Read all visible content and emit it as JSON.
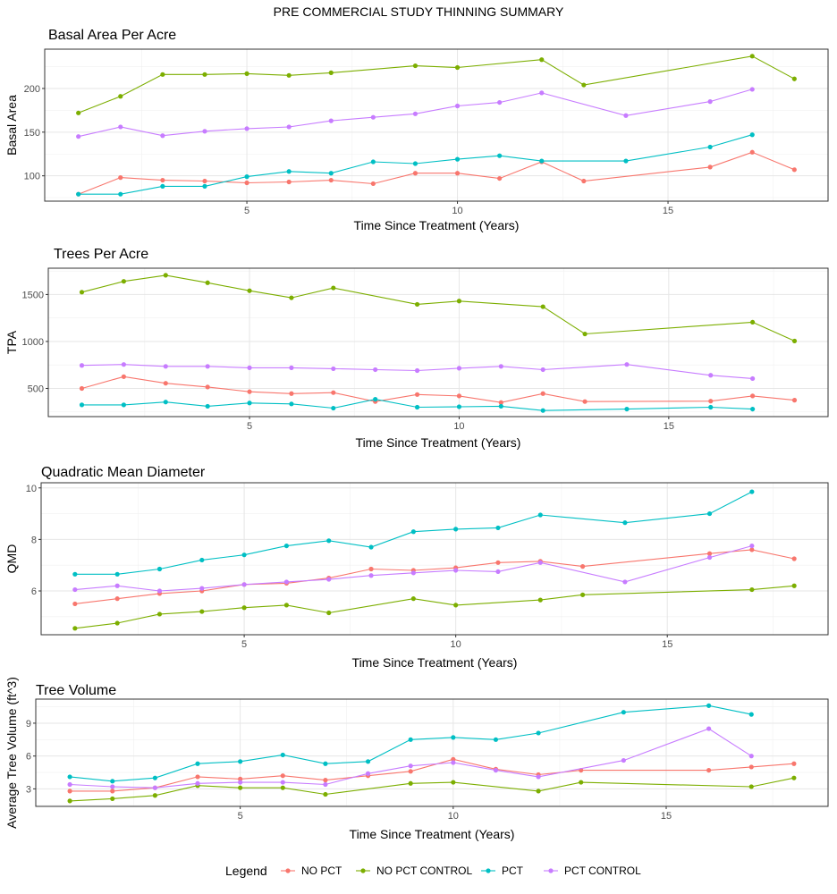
{
  "figure_title": "PRE COMMERCIAL STUDY THINNING SUMMARY",
  "legend": {
    "title": "Legend",
    "position": "bottom",
    "entries": [
      {
        "name": "NO PCT",
        "color": "#F8766D"
      },
      {
        "name": "NO PCT CONTROL",
        "color": "#7CAE00"
      },
      {
        "name": "PCT",
        "color": "#00BFC4"
      },
      {
        "name": "PCT CONTROL",
        "color": "#C77CFF"
      }
    ]
  },
  "chart_data": [
    {
      "type": "line",
      "title": "Basal Area Per Acre",
      "xlabel": "Time Since Treatment (Years)",
      "ylabel": "Basal Area",
      "xlim": [
        0.2,
        18.8
      ],
      "ylim": [
        71,
        245
      ],
      "xticks": [
        5,
        10,
        15
      ],
      "yticks": [
        100,
        150,
        200
      ],
      "series": [
        {
          "name": "NO PCT",
          "x": [
            1,
            2,
            3,
            4,
            5,
            6,
            7,
            8,
            9,
            10,
            11,
            12,
            13,
            16,
            17,
            18
          ],
          "values": [
            79,
            98,
            95,
            94,
            92,
            93,
            95,
            91,
            103,
            103,
            97,
            116,
            94,
            110,
            127,
            107
          ]
        },
        {
          "name": "NO PCT CONTROL",
          "x": [
            1,
            2,
            3,
            4,
            5,
            6,
            7,
            9,
            10,
            12,
            13,
            17,
            18
          ],
          "values": [
            172,
            191,
            216,
            216,
            217,
            215,
            218,
            226,
            224,
            233,
            204,
            237,
            211
          ]
        },
        {
          "name": "PCT",
          "x": [
            1,
            2,
            3,
            4,
            5,
            6,
            7,
            8,
            9,
            10,
            11,
            12,
            14,
            16,
            17
          ],
          "values": [
            79,
            79,
            88,
            88,
            99,
            105,
            103,
            116,
            114,
            119,
            123,
            117,
            117,
            133,
            147
          ]
        },
        {
          "name": "PCT CONTROL",
          "x": [
            1,
            2,
            3,
            4,
            5,
            6,
            7,
            8,
            9,
            10,
            11,
            12,
            14,
            16,
            17
          ],
          "values": [
            145,
            156,
            146,
            151,
            154,
            156,
            163,
            167,
            171,
            180,
            184,
            195,
            169,
            185,
            199
          ]
        }
      ]
    },
    {
      "type": "line",
      "title": "Trees Per Acre",
      "xlabel": "Time Since Treatment (Years)",
      "ylabel": "TPA",
      "xlim": [
        0.2,
        18.8
      ],
      "ylim": [
        200,
        1780
      ],
      "xticks": [
        5,
        10,
        15
      ],
      "yticks": [
        500,
        1000,
        1500
      ],
      "series": [
        {
          "name": "NO PCT",
          "x": [
            1,
            2,
            3,
            4,
            5,
            6,
            7,
            8,
            9,
            10,
            11,
            12,
            13,
            16,
            17,
            18
          ],
          "values": [
            500,
            625,
            555,
            515,
            465,
            445,
            455,
            360,
            435,
            420,
            350,
            445,
            360,
            365,
            420,
            375
          ]
        },
        {
          "name": "NO PCT CONTROL",
          "x": [
            1,
            2,
            3,
            4,
            5,
            6,
            7,
            9,
            10,
            12,
            13,
            17,
            18
          ],
          "values": [
            1525,
            1640,
            1705,
            1625,
            1540,
            1465,
            1570,
            1395,
            1430,
            1370,
            1080,
            1205,
            1005
          ]
        },
        {
          "name": "PCT",
          "x": [
            1,
            2,
            3,
            4,
            5,
            6,
            7,
            8,
            9,
            10,
            11,
            12,
            14,
            16,
            17
          ],
          "values": [
            325,
            325,
            355,
            310,
            345,
            335,
            290,
            385,
            300,
            305,
            310,
            265,
            280,
            300,
            280
          ]
        },
        {
          "name": "PCT CONTROL",
          "x": [
            1,
            2,
            3,
            4,
            5,
            6,
            7,
            8,
            9,
            10,
            11,
            12,
            14,
            16,
            17
          ],
          "values": [
            745,
            755,
            735,
            735,
            720,
            720,
            710,
            700,
            690,
            715,
            735,
            700,
            755,
            640,
            605
          ]
        }
      ]
    },
    {
      "type": "line",
      "title": "Quadratic Mean Diameter",
      "xlabel": "Time Since Treatment (Years)",
      "ylabel": "QMD",
      "xlim": [
        0.2,
        18.8
      ],
      "ylim": [
        4.3,
        10.2
      ],
      "xticks": [
        5,
        10,
        15
      ],
      "yticks": [
        6,
        8,
        10
      ],
      "series": [
        {
          "name": "NO PCT",
          "x": [
            1,
            2,
            3,
            4,
            5,
            6,
            7,
            8,
            9,
            10,
            11,
            12,
            13,
            16,
            17,
            18
          ],
          "values": [
            5.5,
            5.7,
            5.9,
            6.0,
            6.25,
            6.3,
            6.5,
            6.85,
            6.8,
            6.9,
            7.1,
            7.15,
            6.95,
            7.45,
            7.6,
            7.25
          ]
        },
        {
          "name": "NO PCT CONTROL",
          "x": [
            1,
            2,
            3,
            4,
            5,
            6,
            7,
            9,
            10,
            12,
            13,
            17,
            18
          ],
          "values": [
            4.55,
            4.75,
            5.1,
            5.2,
            5.35,
            5.45,
            5.15,
            5.7,
            5.45,
            5.65,
            5.85,
            6.05,
            6.2
          ]
        },
        {
          "name": "PCT",
          "x": [
            1,
            2,
            3,
            4,
            5,
            6,
            7,
            8,
            9,
            10,
            11,
            12,
            14,
            16,
            17
          ],
          "values": [
            6.65,
            6.65,
            6.85,
            7.2,
            7.4,
            7.75,
            7.95,
            7.7,
            8.3,
            8.4,
            8.45,
            8.95,
            8.65,
            9.0,
            9.85
          ]
        },
        {
          "name": "PCT CONTROL",
          "x": [
            1,
            2,
            3,
            4,
            5,
            6,
            7,
            8,
            9,
            10,
            11,
            12,
            14,
            16,
            17
          ],
          "values": [
            6.05,
            6.2,
            6.0,
            6.1,
            6.25,
            6.35,
            6.45,
            6.6,
            6.7,
            6.8,
            6.75,
            7.1,
            6.35,
            7.3,
            7.75
          ]
        }
      ]
    },
    {
      "type": "line",
      "title": "Tree Volume",
      "xlabel": "Time Since Treatment (Years)",
      "ylabel": "Average Tree Volume (ft^3)",
      "xlim": [
        0.2,
        18.8
      ],
      "ylim": [
        1.4,
        11.2
      ],
      "xticks": [
        5,
        10,
        15
      ],
      "yticks": [
        3,
        6,
        9
      ],
      "series": [
        {
          "name": "NO PCT",
          "x": [
            1,
            2,
            3,
            4,
            5,
            6,
            7,
            8,
            9,
            10,
            11,
            12,
            13,
            16,
            17,
            18
          ],
          "values": [
            2.8,
            2.8,
            3.1,
            4.1,
            3.9,
            4.2,
            3.8,
            4.2,
            4.6,
            5.7,
            4.8,
            4.3,
            4.7,
            4.7,
            5.0,
            5.3
          ]
        },
        {
          "name": "NO PCT CONTROL",
          "x": [
            1,
            2,
            3,
            4,
            5,
            6,
            7,
            9,
            10,
            12,
            13,
            17,
            18
          ],
          "values": [
            1.9,
            2.1,
            2.4,
            3.3,
            3.1,
            3.1,
            2.5,
            3.5,
            3.6,
            2.8,
            3.6,
            3.2,
            4.0
          ]
        },
        {
          "name": "PCT",
          "x": [
            1,
            2,
            3,
            4,
            5,
            6,
            7,
            8,
            9,
            10,
            11,
            12,
            14,
            16,
            17
          ],
          "values": [
            4.1,
            3.7,
            4.0,
            5.3,
            5.5,
            6.1,
            5.3,
            5.5,
            7.5,
            7.7,
            7.5,
            8.1,
            10.0,
            10.6,
            9.8
          ]
        },
        {
          "name": "PCT CONTROL",
          "x": [
            1,
            2,
            3,
            4,
            5,
            6,
            7,
            8,
            9,
            10,
            11,
            12,
            14,
            16,
            17
          ],
          "values": [
            3.4,
            3.2,
            3.1,
            3.5,
            3.6,
            3.6,
            3.4,
            4.4,
            5.1,
            5.4,
            4.7,
            4.1,
            5.6,
            8.5,
            6.0
          ]
        }
      ]
    }
  ]
}
